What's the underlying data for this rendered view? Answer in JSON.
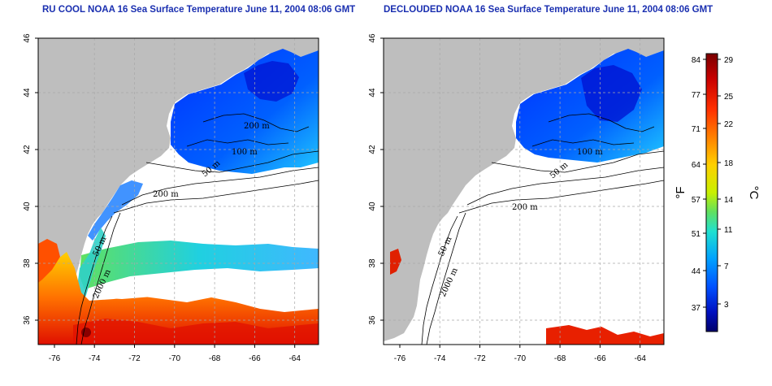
{
  "titles": {
    "left": "RU COOL NOAA 16 Sea Surface Temperature June 11, 2004 08:06 GMT",
    "right": "DECLOUDED NOAA 16 Sea Surface Temperature June 11, 2004 08:06 GMT"
  },
  "axes": {
    "lon_ticks": [
      "-76",
      "-74",
      "-72",
      "-70",
      "-68",
      "-66",
      "-64"
    ],
    "lat_ticks": [
      "46",
      "44",
      "42",
      "40",
      "38",
      "36"
    ]
  },
  "contour_labels": {
    "left": [
      "200 m",
      "100 m",
      "50 m",
      "200 m",
      "50 m",
      "2000 m"
    ],
    "right": [
      "100 m",
      "50 m",
      "200 m",
      "50 m",
      "2000 m"
    ]
  },
  "colorbar": {
    "fahrenheit_label": "°F",
    "celsius_label": "°C",
    "fahrenheit_ticks": [
      "84",
      "77",
      "71",
      "64",
      "57",
      "51",
      "44",
      "37"
    ],
    "celsius_ticks": [
      "29",
      "25",
      "22",
      "18",
      "14",
      "11",
      "7",
      "3"
    ],
    "colors": [
      "#7a0000",
      "#c80000",
      "#ff3000",
      "#ff8000",
      "#ffd000",
      "#c8f000",
      "#60e060",
      "#20e0d0",
      "#00a0ff",
      "#0050ff",
      "#0010c0",
      "#00006a"
    ]
  },
  "colors": {
    "land": "#bebebe",
    "cloud": "#ffffff",
    "title": "#1a2fb0"
  }
}
